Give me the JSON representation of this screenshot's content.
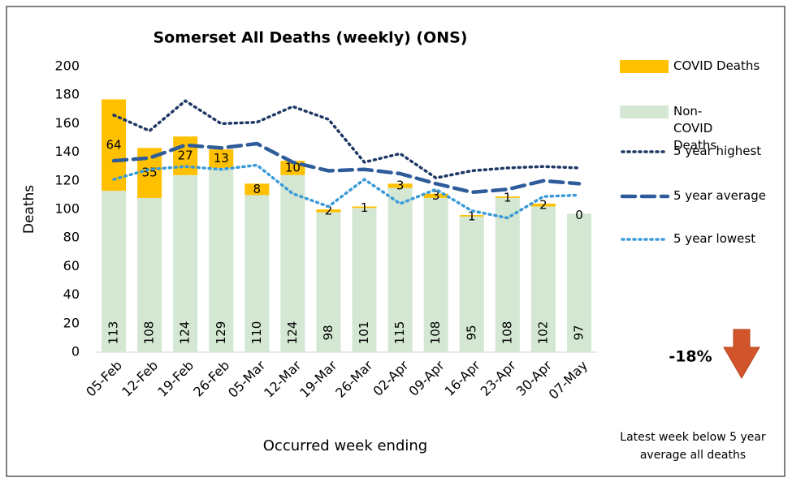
{
  "chart_data": {
    "type": "stacked_bar_line",
    "title": "Somerset All Deaths (weekly) (ONS)",
    "y_label": "Deaths",
    "x_label": "Occurred week ending",
    "categories": [
      "05-Feb",
      "12-Feb",
      "19-Feb",
      "26-Feb",
      "05-Mar",
      "12-Mar",
      "19-Mar",
      "26-Mar",
      "02-Apr",
      "09-Apr",
      "16-Apr",
      "23-Apr",
      "30-Apr",
      "07-May"
    ],
    "ylim": [
      0,
      200
    ],
    "yticks": [
      0,
      20,
      40,
      60,
      80,
      100,
      120,
      140,
      160,
      180,
      200
    ],
    "grid": false,
    "legend": "right",
    "series": [
      {
        "name": "COVID Deaths",
        "type": "bar",
        "stack_order": 2,
        "color": "#FFC000",
        "values": [
          64,
          35,
          27,
          13,
          8,
          10,
          2,
          1,
          3,
          3,
          1,
          1,
          2,
          0
        ]
      },
      {
        "name": "Non-COVID Deaths",
        "type": "bar",
        "stack_order": 1,
        "color": "#D3E7D3",
        "values": [
          113,
          108,
          124,
          129,
          110,
          124,
          98,
          101,
          115,
          108,
          95,
          108,
          102,
          97
        ]
      },
      {
        "name": "5 year highest",
        "type": "line",
        "style": "dotted",
        "color": "#1F3864",
        "values": [
          166,
          155,
          176,
          160,
          161,
          172,
          163,
          133,
          139,
          122,
          127,
          129,
          130,
          129
        ]
      },
      {
        "name": "5 year average",
        "type": "line",
        "style": "dashed",
        "color": "#2E5C9A",
        "values": [
          134,
          136,
          145,
          143,
          146,
          133,
          127,
          128,
          125,
          118,
          112,
          114,
          120,
          118
        ]
      },
      {
        "name": "5 year lowest",
        "type": "line",
        "style": "dotted",
        "color": "#3A9AD9",
        "values": [
          121,
          128,
          130,
          128,
          131,
          111,
          102,
          121,
          104,
          114,
          99,
          94,
          109,
          110
        ]
      }
    ],
    "annotations": {
      "change": "-18%",
      "note": "Latest week below 5 year average all deaths"
    }
  }
}
